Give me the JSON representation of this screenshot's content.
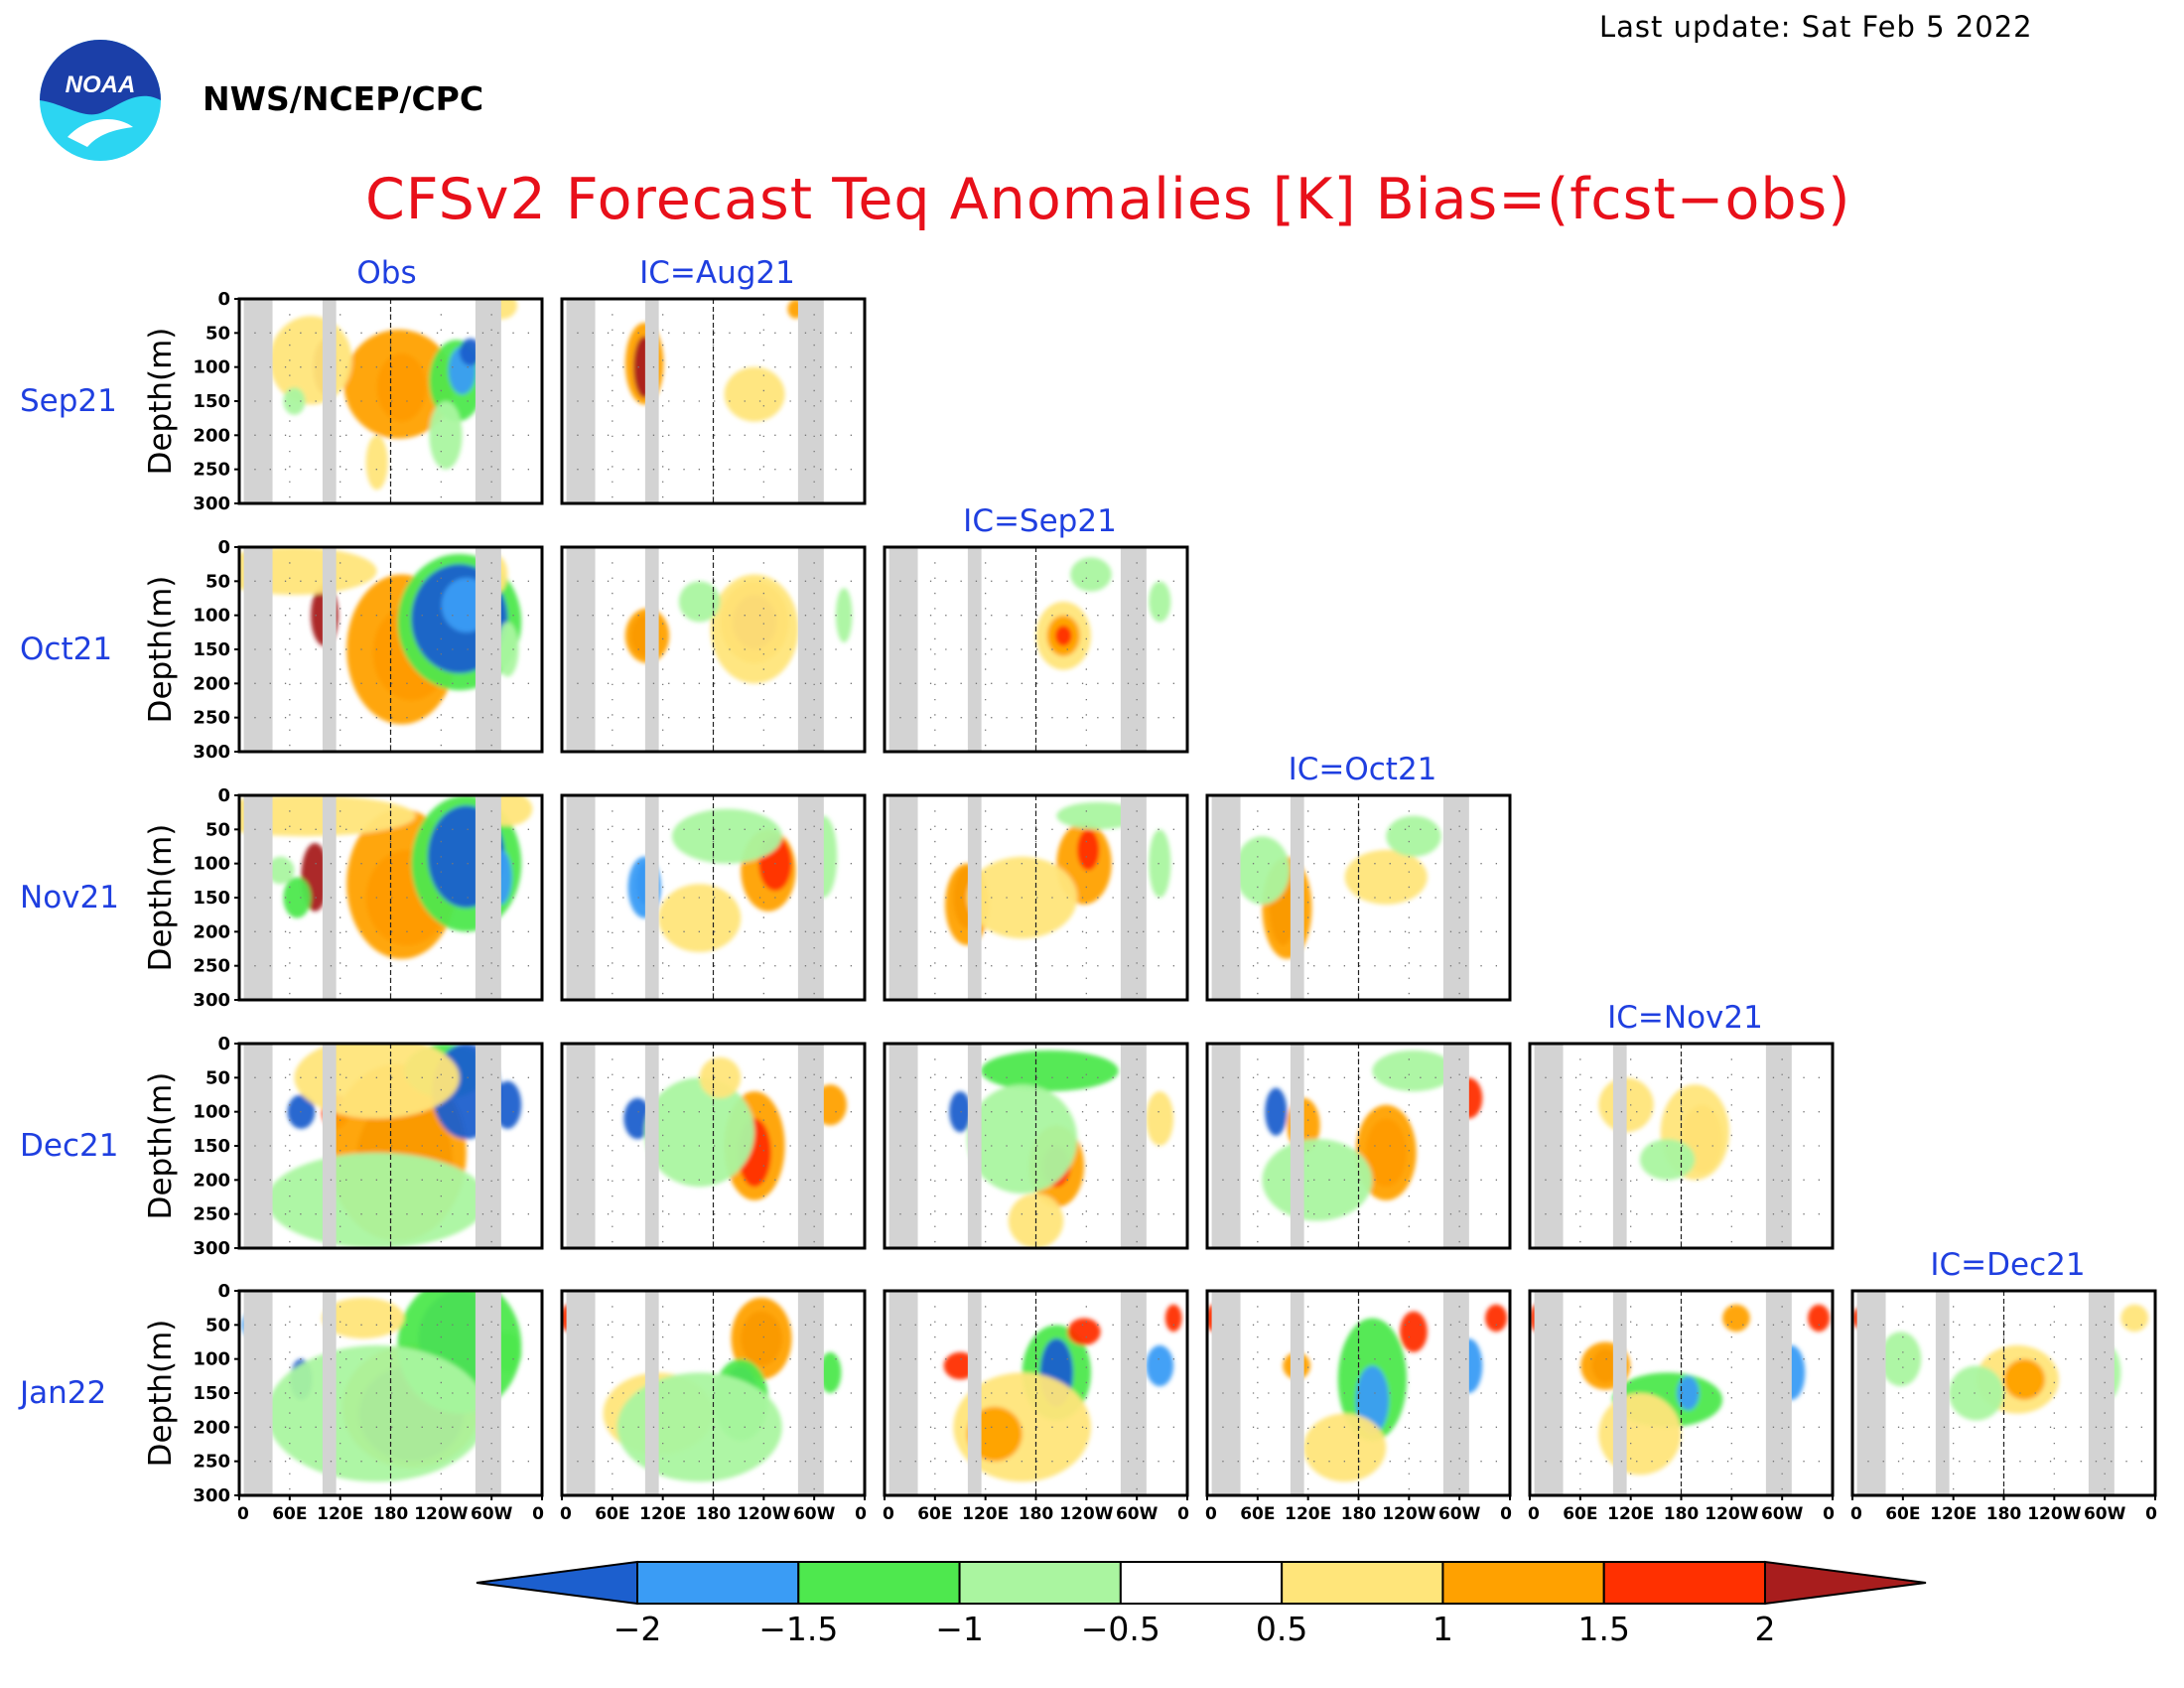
{
  "header": {
    "last_update": "Last update: Sat Feb 5 2022",
    "agency": "NWS/NCEP/CPC",
    "logo_text": "NOAA"
  },
  "chart_data": {
    "type": "heatmap",
    "title": "CFSv2 Forecast Teq Anomalies [K] Bias=(fcst−obs)",
    "ylabel": "Depth(m)",
    "x_ticks": [
      "0",
      "60E",
      "120E",
      "180",
      "120W",
      "60W",
      "0"
    ],
    "y_ticks": [
      "0",
      "50",
      "100",
      "150",
      "200",
      "250",
      "300"
    ],
    "ylim": [
      300,
      0
    ],
    "column_titles": [
      "Obs",
      "IC=Aug21",
      "IC=Sep21",
      "IC=Oct21",
      "IC=Nov21",
      "IC=Dec21"
    ],
    "row_labels": [
      "Sep21",
      "Oct21",
      "Nov21",
      "Dec21",
      "Jan22"
    ],
    "colorbar": {
      "levels": [
        "−2",
        "−1.5",
        "−1",
        "−0.5",
        "0.5",
        "1",
        "1.5",
        "2"
      ],
      "colors": [
        "#1c5fce",
        "#3a9cf5",
        "#4ee84e",
        "#aaf5a0",
        "#ffffff",
        "#ffe57a",
        "#ffa100",
        "#ff3000",
        "#a81d1d"
      ]
    },
    "land_mask_color": "#d3d3d3",
    "panels": [
      {
        "row": 0,
        "col": 0,
        "blobs": [
          [
            62,
            100,
            8,
            40,
            "#a81d1d"
          ],
          [
            118,
            130,
            18,
            50,
            "#ff3000"
          ],
          [
            116,
            125,
            40,
            80,
            "#ffa100"
          ],
          [
            52,
            90,
            30,
            65,
            "#ffe57a"
          ],
          [
            158,
            120,
            20,
            60,
            "#4ee84e"
          ],
          [
            162,
            105,
            10,
            35,
            "#3a9cf5"
          ],
          [
            168,
            78,
            8,
            20,
            "#1c5fce"
          ],
          [
            150,
            200,
            12,
            50,
            "#aaf5a0"
          ],
          [
            190,
            10,
            12,
            20,
            "#ffe57a"
          ],
          [
            100,
            240,
            8,
            40,
            "#ffe57a"
          ],
          [
            40,
            150,
            8,
            20,
            "#aaf5a0"
          ]
        ]
      },
      {
        "row": 0,
        "col": 1,
        "blobs": [
          [
            60,
            95,
            14,
            60,
            "#ffa100"
          ],
          [
            60,
            100,
            8,
            45,
            "#a81d1d"
          ],
          [
            140,
            140,
            22,
            40,
            "#ffe57a"
          ],
          [
            170,
            15,
            6,
            14,
            "#ffa100"
          ]
        ]
      },
      {
        "row": 1,
        "col": 0,
        "blobs": [
          [
            62,
            100,
            10,
            45,
            "#a81d1d"
          ],
          [
            125,
            155,
            28,
            70,
            "#ff3000"
          ],
          [
            118,
            150,
            40,
            110,
            "#ffa100"
          ],
          [
            40,
            35,
            60,
            35,
            "#ffe57a"
          ],
          [
            160,
            110,
            45,
            100,
            "#4ee84e"
          ],
          [
            160,
            105,
            35,
            80,
            "#1c5fce"
          ],
          [
            165,
            85,
            18,
            40,
            "#3a9cf5"
          ],
          [
            185,
            40,
            10,
            30,
            "#ffe57a"
          ],
          [
            195,
            150,
            8,
            40,
            "#aaf5a0"
          ]
        ]
      },
      {
        "row": 1,
        "col": 1,
        "blobs": [
          [
            60,
            130,
            10,
            30,
            "#a81d1d"
          ],
          [
            62,
            130,
            16,
            40,
            "#ffa100"
          ],
          [
            140,
            110,
            25,
            60,
            "#ffa100"
          ],
          [
            140,
            110,
            16,
            40,
            "#a81d1d"
          ],
          [
            140,
            120,
            32,
            80,
            "#ffe57a"
          ],
          [
            100,
            80,
            15,
            30,
            "#aaf5a0"
          ],
          [
            205,
            100,
            6,
            40,
            "#aaf5a0"
          ]
        ]
      },
      {
        "row": 1,
        "col": 2,
        "blobs": [
          [
            130,
            130,
            20,
            50,
            "#ffe57a"
          ],
          [
            130,
            130,
            12,
            30,
            "#ffa100"
          ],
          [
            130,
            130,
            6,
            15,
            "#ff3000"
          ],
          [
            150,
            40,
            15,
            25,
            "#aaf5a0"
          ],
          [
            200,
            80,
            8,
            30,
            "#aaf5a0"
          ]
        ]
      },
      {
        "row": 2,
        "col": 0,
        "blobs": [
          [
            55,
            120,
            10,
            50,
            "#a81d1d"
          ],
          [
            122,
            150,
            30,
            70,
            "#ff3000"
          ],
          [
            118,
            130,
            40,
            110,
            "#ffa100"
          ],
          [
            48,
            30,
            80,
            30,
            "#ffe57a"
          ],
          [
            165,
            100,
            40,
            100,
            "#4ee84e"
          ],
          [
            165,
            90,
            28,
            75,
            "#1c5fce"
          ],
          [
            190,
            120,
            8,
            40,
            "#3a9cf5"
          ],
          [
            195,
            20,
            18,
            25,
            "#ffe57a"
          ],
          [
            42,
            150,
            10,
            30,
            "#4ee84e"
          ],
          [
            30,
            110,
            10,
            20,
            "#aaf5a0"
          ]
        ]
      },
      {
        "row": 2,
        "col": 1,
        "blobs": [
          [
            60,
            130,
            6,
            30,
            "#1c5fce"
          ],
          [
            60,
            135,
            12,
            45,
            "#3a9cf5"
          ],
          [
            150,
            110,
            20,
            60,
            "#ffa100"
          ],
          [
            155,
            100,
            12,
            40,
            "#ff3000"
          ],
          [
            100,
            180,
            30,
            50,
            "#ffe57a"
          ],
          [
            120,
            60,
            40,
            40,
            "#aaf5a0"
          ],
          [
            190,
            90,
            10,
            60,
            "#aaf5a0"
          ]
        ]
      },
      {
        "row": 2,
        "col": 2,
        "blobs": [
          [
            60,
            150,
            10,
            45,
            "#a81d1d"
          ],
          [
            60,
            160,
            16,
            60,
            "#ffa100"
          ],
          [
            145,
            100,
            20,
            60,
            "#ffa100"
          ],
          [
            148,
            80,
            8,
            30,
            "#ff3000"
          ],
          [
            155,
            30,
            30,
            20,
            "#aaf5a0"
          ],
          [
            100,
            150,
            40,
            60,
            "#ffe57a"
          ],
          [
            200,
            100,
            8,
            50,
            "#aaf5a0"
          ]
        ]
      },
      {
        "row": 2,
        "col": 3,
        "blobs": [
          [
            55,
            160,
            10,
            60,
            "#a81d1d"
          ],
          [
            58,
            165,
            18,
            75,
            "#ffa100"
          ],
          [
            130,
            120,
            30,
            40,
            "#ffe57a"
          ],
          [
            150,
            60,
            20,
            30,
            "#aaf5a0"
          ],
          [
            40,
            110,
            20,
            50,
            "#aaf5a0"
          ]
        ]
      },
      {
        "row": 3,
        "col": 0,
        "blobs": [
          [
            45,
            100,
            10,
            25,
            "#1c5fce"
          ],
          [
            70,
            100,
            10,
            25,
            "#ff3000"
          ],
          [
            120,
            170,
            35,
            90,
            "#a81d1d"
          ],
          [
            115,
            160,
            50,
            130,
            "#ffa100"
          ],
          [
            150,
            40,
            30,
            40,
            "#4ee84e"
          ],
          [
            165,
            70,
            25,
            70,
            "#1c5fce"
          ],
          [
            195,
            90,
            10,
            35,
            "#1c5fce"
          ],
          [
            100,
            50,
            60,
            60,
            "#ffe57a"
          ],
          [
            100,
            230,
            80,
            70,
            "#aaf5a0"
          ]
        ]
      },
      {
        "row": 3,
        "col": 1,
        "blobs": [
          [
            55,
            110,
            10,
            30,
            "#1c5fce"
          ],
          [
            140,
            150,
            22,
            80,
            "#ffa100"
          ],
          [
            140,
            160,
            12,
            50,
            "#ff3000"
          ],
          [
            195,
            90,
            12,
            30,
            "#ffa100"
          ],
          [
            100,
            130,
            40,
            80,
            "#aaf5a0"
          ],
          [
            115,
            50,
            15,
            30,
            "#ffe57a"
          ]
        ]
      },
      {
        "row": 3,
        "col": 2,
        "blobs": [
          [
            55,
            100,
            8,
            30,
            "#1c5fce"
          ],
          [
            125,
            180,
            20,
            60,
            "#ffa100"
          ],
          [
            125,
            180,
            10,
            30,
            "#ff3000"
          ],
          [
            120,
            40,
            50,
            30,
            "#4ee84e"
          ],
          [
            100,
            140,
            40,
            80,
            "#aaf5a0"
          ],
          [
            200,
            110,
            10,
            40,
            "#ffe57a"
          ],
          [
            110,
            260,
            20,
            40,
            "#ffe57a"
          ]
        ]
      },
      {
        "row": 3,
        "col": 3,
        "blobs": [
          [
            50,
            100,
            8,
            35,
            "#1c5fce"
          ],
          [
            70,
            120,
            12,
            40,
            "#ffa100"
          ],
          [
            130,
            160,
            15,
            50,
            "#ff3000"
          ],
          [
            130,
            160,
            22,
            70,
            "#ffa100"
          ],
          [
            190,
            80,
            10,
            30,
            "#ff3000"
          ],
          [
            150,
            40,
            30,
            30,
            "#aaf5a0"
          ],
          [
            80,
            200,
            40,
            60,
            "#aaf5a0"
          ]
        ]
      },
      {
        "row": 3,
        "col": 4,
        "blobs": [
          [
            125,
            140,
            15,
            50,
            "#ffa100"
          ],
          [
            120,
            130,
            25,
            70,
            "#ffe57a"
          ],
          [
            100,
            170,
            20,
            30,
            "#aaf5a0"
          ],
          [
            70,
            90,
            20,
            40,
            "#ffe57a"
          ]
        ]
      },
      {
        "row": 4,
        "col": 0,
        "blobs": [
          [
            45,
            130,
            8,
            30,
            "#1c5fce"
          ],
          [
            125,
            170,
            50,
            90,
            "#ffa100"
          ],
          [
            125,
            180,
            38,
            70,
            "#a81d1d"
          ],
          [
            160,
            70,
            30,
            70,
            "#1c5fce"
          ],
          [
            160,
            80,
            45,
            100,
            "#4ee84e"
          ],
          [
            100,
            180,
            80,
            100,
            "#aaf5a0"
          ],
          [
            195,
            90,
            10,
            30,
            "#4ee84e"
          ],
          [
            10,
            50,
            8,
            20,
            "#3a9cf5"
          ],
          [
            90,
            40,
            30,
            30,
            "#ffe57a"
          ]
        ]
      },
      {
        "row": 4,
        "col": 1,
        "blobs": [
          [
            145,
            70,
            15,
            40,
            "#a81d1d"
          ],
          [
            145,
            70,
            22,
            60,
            "#ffa100"
          ],
          [
            130,
            150,
            12,
            40,
            "#1c5fce"
          ],
          [
            130,
            160,
            20,
            60,
            "#4ee84e"
          ],
          [
            70,
            180,
            40,
            60,
            "#ffe57a"
          ],
          [
            100,
            200,
            60,
            80,
            "#aaf5a0"
          ],
          [
            195,
            120,
            8,
            30,
            "#4ee84e"
          ],
          [
            5,
            40,
            6,
            20,
            "#ff3000"
          ]
        ]
      },
      {
        "row": 4,
        "col": 2,
        "blobs": [
          [
            55,
            110,
            12,
            20,
            "#ff3000"
          ],
          [
            125,
            120,
            25,
            70,
            "#4ee84e"
          ],
          [
            125,
            120,
            12,
            50,
            "#1c5fce"
          ],
          [
            145,
            60,
            12,
            20,
            "#ff3000"
          ],
          [
            100,
            200,
            50,
            80,
            "#ffe57a"
          ],
          [
            80,
            210,
            20,
            40,
            "#ffa100"
          ],
          [
            200,
            110,
            10,
            30,
            "#3a9cf5"
          ],
          [
            210,
            40,
            6,
            20,
            "#ff3000"
          ]
        ]
      },
      {
        "row": 4,
        "col": 3,
        "blobs": [
          [
            65,
            110,
            10,
            20,
            "#ffa100"
          ],
          [
            120,
            130,
            25,
            90,
            "#4ee84e"
          ],
          [
            120,
            160,
            12,
            50,
            "#3a9cf5"
          ],
          [
            150,
            60,
            10,
            30,
            "#ff3000"
          ],
          [
            100,
            230,
            30,
            50,
            "#ffe57a"
          ],
          [
            190,
            110,
            10,
            40,
            "#3a9cf5"
          ],
          [
            210,
            40,
            8,
            20,
            "#ff3000"
          ],
          [
            5,
            40,
            6,
            20,
            "#ff3000"
          ]
        ]
      },
      {
        "row": 4,
        "col": 4,
        "blobs": [
          [
            55,
            110,
            10,
            25,
            "#a81d1d"
          ],
          [
            55,
            110,
            18,
            35,
            "#ffa100"
          ],
          [
            100,
            160,
            40,
            40,
            "#4ee84e"
          ],
          [
            115,
            150,
            8,
            25,
            "#3a9cf5"
          ],
          [
            150,
            40,
            10,
            20,
            "#ffa100"
          ],
          [
            190,
            120,
            10,
            40,
            "#3a9cf5"
          ],
          [
            210,
            40,
            8,
            20,
            "#ff3000"
          ],
          [
            5,
            40,
            5,
            20,
            "#ff3000"
          ],
          [
            80,
            210,
            30,
            60,
            "#ffe57a"
          ]
        ]
      },
      {
        "row": 4,
        "col": 5,
        "blobs": [
          [
            120,
            130,
            30,
            50,
            "#ffe57a"
          ],
          [
            125,
            130,
            15,
            30,
            "#ffa100"
          ],
          [
            90,
            150,
            20,
            40,
            "#aaf5a0"
          ],
          [
            185,
            120,
            10,
            40,
            "#aaf5a0"
          ],
          [
            205,
            40,
            10,
            20,
            "#ffe57a"
          ],
          [
            5,
            40,
            5,
            15,
            "#ff3000"
          ],
          [
            35,
            100,
            15,
            40,
            "#aaf5a0"
          ]
        ]
      }
    ]
  }
}
